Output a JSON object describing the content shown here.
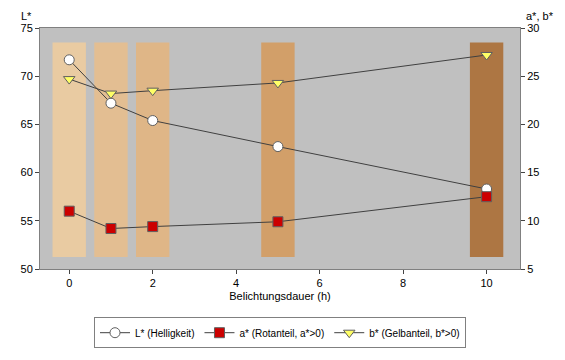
{
  "chart_data": {
    "type": "line",
    "xlabel": "Belichtungsdauer (h)",
    "ylabel": "L*",
    "y2label": "a*, b*",
    "x": [
      0,
      1,
      2,
      5,
      10
    ],
    "series": [
      {
        "name": "L* (Helligkeit)",
        "color": "#ffffff",
        "marker": "circle",
        "values": [
          71.7,
          67.2,
          65.4,
          62.7,
          58.3
        ]
      },
      {
        "name": "a* (Rotanteil, a*>0)",
        "color": "#cc0000",
        "marker": "square",
        "axis": "y2",
        "values": [
          11.0,
          9.2,
          9.4,
          9.9,
          12.5
        ]
      },
      {
        "name": "b* (Gelbanteil, b*>0)",
        "color": "#ffff66",
        "marker": "triangle-down",
        "axis": "y2",
        "values": [
          24.7,
          23.2,
          23.5,
          24.3,
          27.2
        ]
      }
    ],
    "xlim": [
      -0.7,
      10.8
    ],
    "xticks": [
      0,
      2,
      4,
      6,
      8,
      10
    ],
    "ylim": [
      50,
      75
    ],
    "yticks": [
      50,
      55,
      60,
      65,
      70,
      75
    ],
    "y2lim": [
      5,
      30
    ],
    "y2ticks": [
      5,
      10,
      15,
      20,
      25,
      30
    ],
    "grid": false,
    "legend": "bottom"
  }
}
